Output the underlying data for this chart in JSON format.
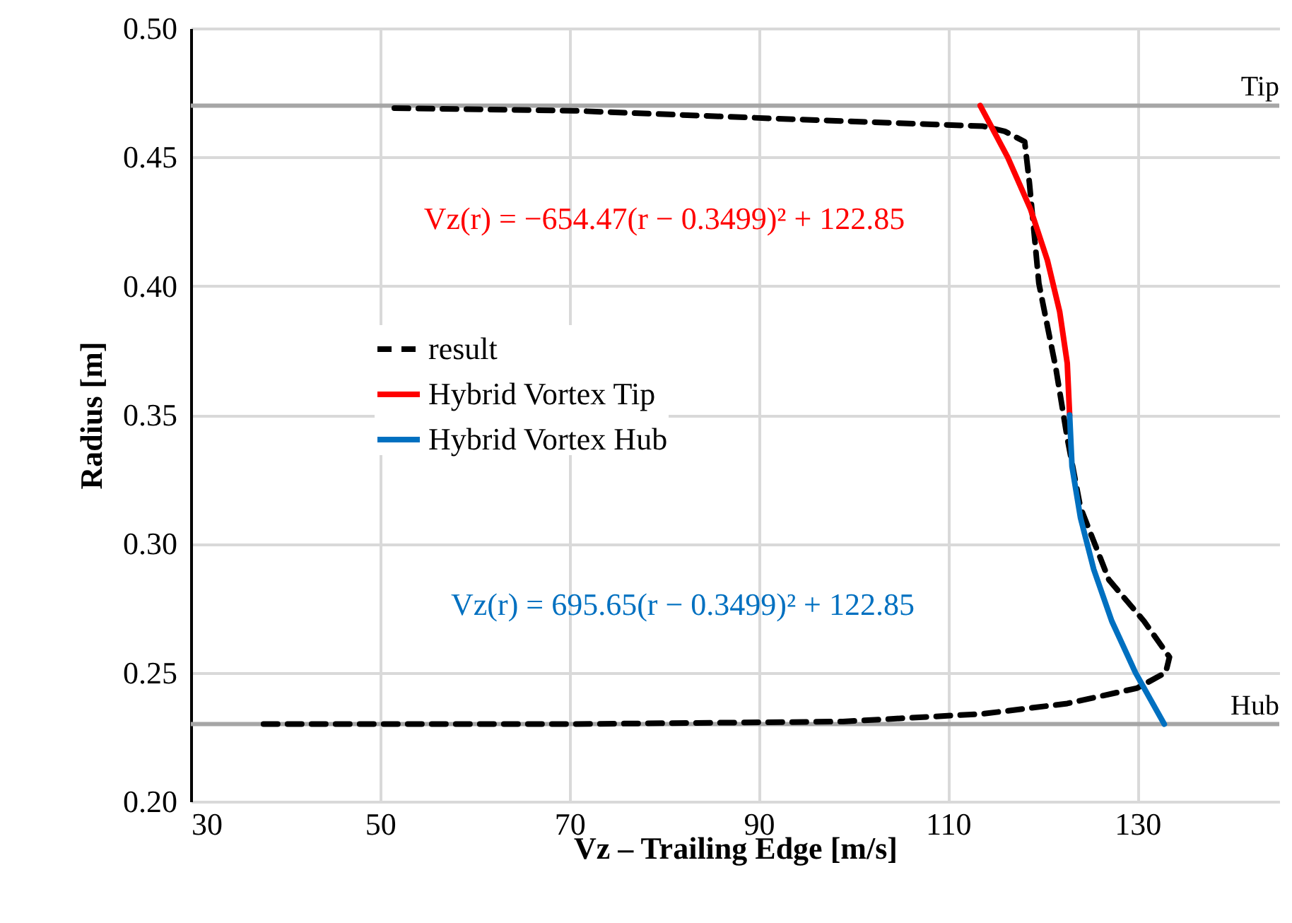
{
  "chart_data": {
    "type": "line",
    "xlabel": "Vz – Trailing Edge [m/s]",
    "ylabel": "Radius [m]",
    "xlim": [
      30,
      145
    ],
    "xticks": [
      30,
      50,
      70,
      90,
      110,
      130
    ],
    "ylim": [
      0.2,
      0.5
    ],
    "yticks": [
      {
        "value": 0.2,
        "label": "0.20"
      },
      {
        "value": 0.25,
        "label": "0.25"
      },
      {
        "value": 0.3,
        "label": "0.30"
      },
      {
        "value": 0.35,
        "label": "0.35"
      },
      {
        "value": 0.4,
        "label": "0.40"
      },
      {
        "value": 0.45,
        "label": "0.45"
      },
      {
        "value": 0.5,
        "label": "0.50"
      }
    ],
    "grid": true,
    "legend": "left",
    "series": [
      {
        "name": "result",
        "color": "#000000",
        "line_style": "dashed",
        "x": [
          51.5,
          70.5,
          91.5,
          113.7,
          116,
          118.1,
          118.6,
          119.6,
          121.4,
          122.6,
          124,
          127,
          130.7,
          133.4,
          133,
          130,
          122.6,
          113.7,
          98.9,
          70,
          37.4
        ],
        "values": [
          0.469,
          0.468,
          0.465,
          0.462,
          0.46,
          0.456,
          0.44,
          0.401,
          0.368,
          0.341,
          0.314,
          0.286,
          0.27,
          0.256,
          0.25,
          0.244,
          0.238,
          0.234,
          0.231,
          0.23,
          0.23
        ]
      },
      {
        "name": "Hybrid Vortex Tip",
        "color": "#ff0000",
        "line_style": "solid",
        "x": [
          113.4,
          116.3,
          118.7,
          120.5,
          121.8,
          122.6,
          122.85
        ],
        "values": [
          0.47,
          0.45,
          0.43,
          0.41,
          0.39,
          0.37,
          0.3499
        ]
      },
      {
        "name": "Hybrid Vortex Hub",
        "color": "#0070c0",
        "line_style": "solid",
        "x": [
          122.85,
          123.1,
          124.0,
          125.4,
          127.3,
          129.8,
          132.85
        ],
        "values": [
          0.3499,
          0.33,
          0.31,
          0.29,
          0.27,
          0.25,
          0.23
        ]
      }
    ],
    "ref_lines": [
      {
        "axis": "y",
        "value": 0.47,
        "label": "Tip",
        "color": "#a6a6a6"
      },
      {
        "axis": "y",
        "value": 0.23,
        "label": "Hub",
        "color": "#a6a6a6"
      }
    ],
    "annotations": [
      "Vz(r) = −654.47(r − 0.3499)² + 122.85",
      "Vz(r) = 695.65(r − 0.3499)² + 122.85"
    ]
  }
}
